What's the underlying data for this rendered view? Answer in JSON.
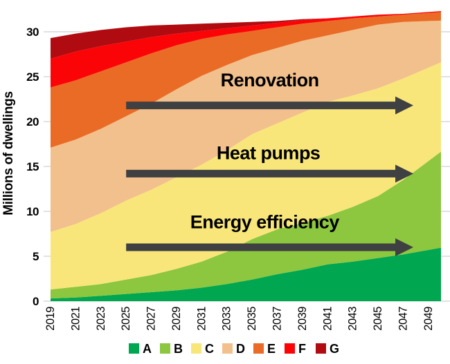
{
  "style": {
    "background": "#ffffff",
    "grid_color": "#d9d9d9",
    "arrow_color": "#3f4041",
    "text_color": "#000000"
  },
  "chart_data": {
    "type": "area",
    "stacked": true,
    "title": "",
    "xlabel": "",
    "ylabel": "Millions of dwellings",
    "ylim": [
      0,
      32.5
    ],
    "yticks": [
      0,
      5,
      10,
      15,
      20,
      25,
      30
    ],
    "grid": "horizontal",
    "legend_position": "bottom",
    "x": [
      2019,
      2021,
      2023,
      2025,
      2027,
      2029,
      2031,
      2033,
      2035,
      2037,
      2039,
      2041,
      2043,
      2045,
      2047,
      2049
    ],
    "xticks": [
      2019,
      2021,
      2023,
      2025,
      2027,
      2029,
      2031,
      2033,
      2035,
      2037,
      2039,
      2041,
      2043,
      2045,
      2047,
      2049
    ],
    "series": [
      {
        "name": "A",
        "color": "#00a650",
        "values": [
          0.3,
          0.4,
          0.6,
          0.8,
          1.0,
          1.2,
          1.5,
          1.9,
          2.4,
          3.0,
          3.5,
          4.1,
          4.4,
          4.8,
          5.2,
          5.7
        ]
      },
      {
        "name": "B",
        "color": "#8dc63f",
        "values": [
          1.0,
          1.2,
          1.3,
          1.6,
          1.9,
          2.4,
          2.9,
          3.6,
          4.5,
          5.0,
          5.2,
          5.4,
          6.1,
          6.9,
          8.3,
          9.9
        ]
      },
      {
        "name": "C",
        "color": "#f8e67a",
        "values": [
          6.4,
          7.0,
          7.9,
          8.8,
          9.5,
          10.2,
          10.8,
          11.3,
          11.7,
          11.8,
          12.3,
          12.7,
          12.4,
          12.0,
          11.3,
          10.4
        ]
      },
      {
        "name": "D",
        "color": "#f2c08c",
        "values": [
          9.4,
          9.4,
          9.4,
          9.4,
          9.6,
          9.8,
          9.9,
          9.5,
          8.8,
          8.4,
          8.0,
          7.4,
          7.3,
          7.1,
          6.3,
          5.2
        ]
      },
      {
        "name": "E",
        "color": "#e96b25",
        "values": [
          6.7,
          6.6,
          6.4,
          6.0,
          5.6,
          4.9,
          4.1,
          3.4,
          2.7,
          2.3,
          1.9,
          1.6,
          1.3,
          0.9,
          0.8,
          0.9
        ]
      },
      {
        "name": "F",
        "color": "#fb0408",
        "values": [
          3.2,
          3.2,
          2.8,
          2.3,
          1.8,
          1.3,
          0.9,
          0.7,
          0.6,
          0.5,
          0.4,
          0.3,
          0.2,
          0.2,
          0.1,
          0.1
        ]
      },
      {
        "name": "G",
        "color": "#b00b10",
        "values": [
          2.3,
          2.0,
          1.8,
          1.6,
          1.3,
          1.0,
          0.8,
          0.6,
          0.4,
          0.2,
          0.1,
          0.0,
          0.0,
          0.0,
          0.0,
          0.0
        ]
      }
    ],
    "annotations": [
      {
        "label": "Renovation",
        "arrow": {
          "year_from": 2025,
          "year_to": 2047.8,
          "value": 21.8
        },
        "label_pos": {
          "year": 2036.4,
          "value": 24.6
        }
      },
      {
        "label": "Heat pumps",
        "arrow": {
          "year_from": 2025,
          "year_to": 2047.8,
          "value": 14.2
        },
        "label_pos": {
          "year": 2036.3,
          "value": 16.5
        }
      },
      {
        "label": "Energy efficiency",
        "arrow": {
          "year_from": 2025,
          "year_to": 2047.8,
          "value": 6.0
        },
        "label_pos": {
          "year": 2036.0,
          "value": 8.8
        }
      }
    ]
  }
}
